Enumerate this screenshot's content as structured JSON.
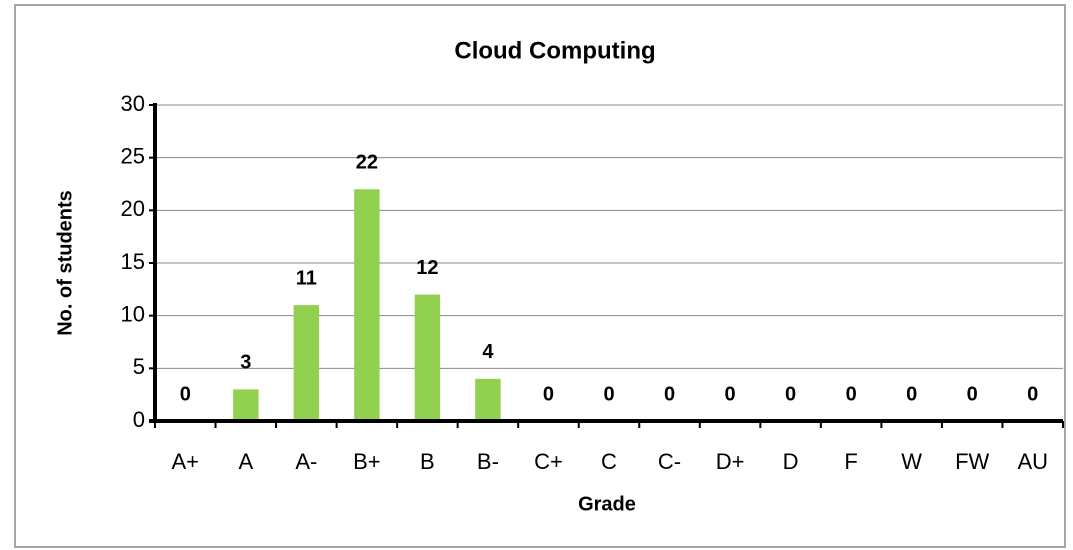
{
  "chart_data": {
    "type": "bar",
    "title": "Cloud Computing",
    "x_label": "Grade",
    "y_label": "No. of students",
    "categories": [
      "A+",
      "A",
      "A-",
      "B+",
      "B",
      "B-",
      "C+",
      "C",
      "C-",
      "D+",
      "D",
      "F",
      "W",
      "FW",
      "AU"
    ],
    "values": [
      0,
      3,
      11,
      22,
      12,
      4,
      0,
      0,
      0,
      0,
      0,
      0,
      0,
      0,
      0
    ],
    "color": "#92d050",
    "ylim": [
      0,
      30
    ],
    "yticks": [
      0,
      5,
      10,
      15,
      20,
      25,
      30
    ],
    "grid": true
  }
}
